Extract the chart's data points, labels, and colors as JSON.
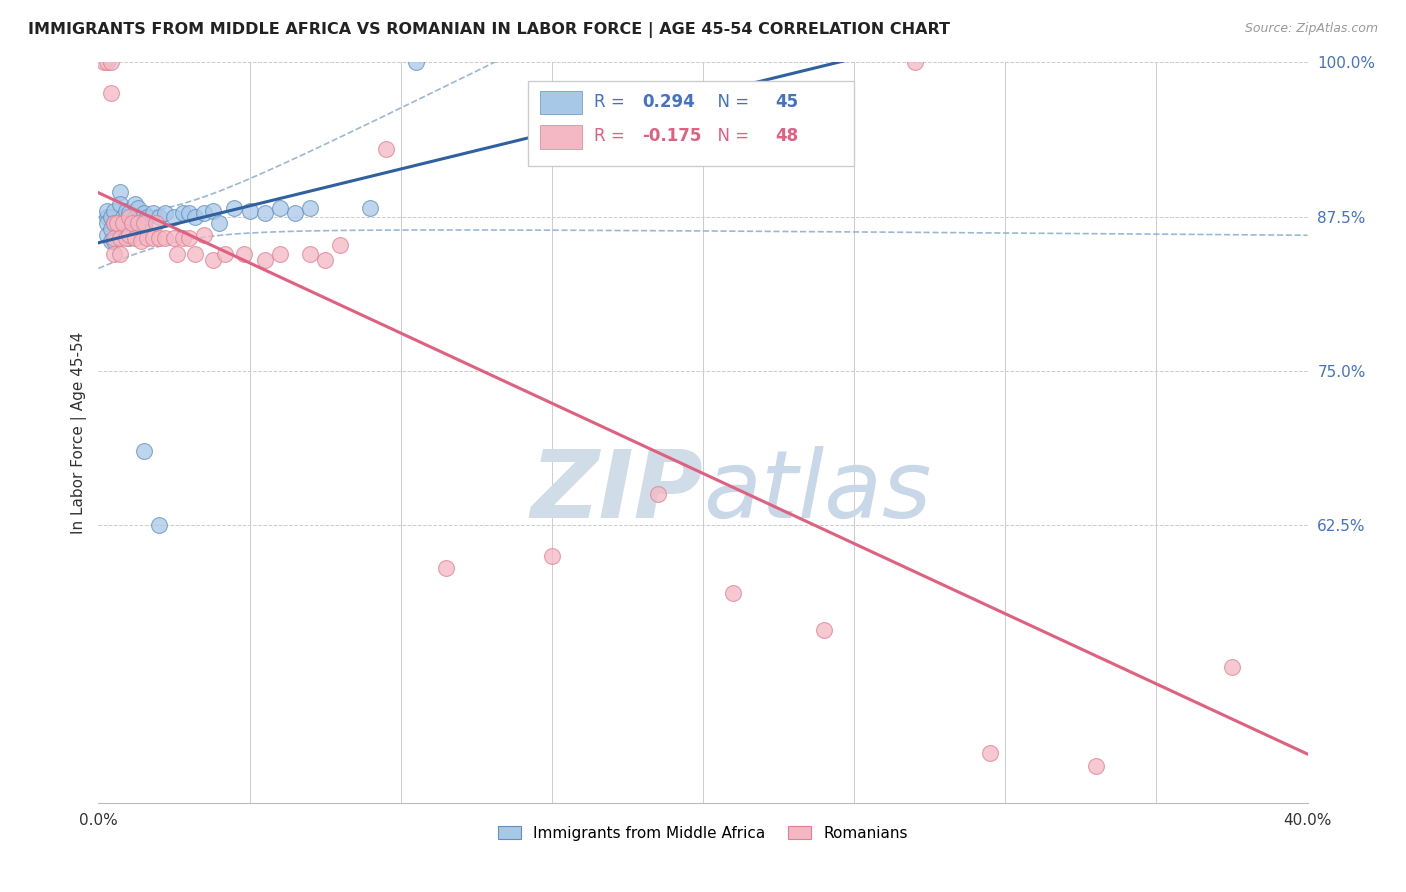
{
  "title": "IMMIGRANTS FROM MIDDLE AFRICA VS ROMANIAN IN LABOR FORCE | AGE 45-54 CORRELATION CHART",
  "source": "Source: ZipAtlas.com",
  "ylabel_label": "In Labor Force | Age 45-54",
  "xlim": [
    0.0,
    0.4
  ],
  "ylim": [
    0.4,
    1.0
  ],
  "ytick_vals": [
    0.625,
    0.75,
    0.875,
    1.0
  ],
  "ytick_labels": [
    "62.5%",
    "75.0%",
    "87.5%",
    "100.0%"
  ],
  "xtick_vals": [
    0.0,
    0.05,
    0.1,
    0.15,
    0.2,
    0.25,
    0.3,
    0.35,
    0.4
  ],
  "xtick_labels": [
    "0.0%",
    "",
    "",
    "",
    "",
    "",
    "",
    "",
    "40.0%"
  ],
  "legend_blue_label": "Immigrants from Middle Africa",
  "legend_pink_label": "Romanians",
  "R_blue": 0.294,
  "N_blue": 45,
  "R_pink": -0.175,
  "N_pink": 48,
  "blue_color": "#a8c8e8",
  "pink_color": "#f4b8c4",
  "blue_edge_color": "#6090c0",
  "pink_edge_color": "#e08090",
  "blue_line_color": "#3060a0",
  "pink_line_color": "#e06080",
  "dash_color": "#90b0d0",
  "watermark_color": "#d0dce8",
  "blue_scatter_x": [
    0.003,
    0.003,
    0.003,
    0.003,
    0.004,
    0.004,
    0.004,
    0.005,
    0.005,
    0.005,
    0.007,
    0.007,
    0.008,
    0.008,
    0.009,
    0.009,
    0.01,
    0.01,
    0.01,
    0.012,
    0.012,
    0.013,
    0.015,
    0.015,
    0.016,
    0.018,
    0.02,
    0.022,
    0.025,
    0.028,
    0.03,
    0.032,
    0.035,
    0.038,
    0.04,
    0.045,
    0.05,
    0.055,
    0.06,
    0.065,
    0.07,
    0.09,
    0.105,
    0.02,
    0.015
  ],
  "blue_scatter_y": [
    0.875,
    0.88,
    0.87,
    0.86,
    0.875,
    0.865,
    0.855,
    0.88,
    0.87,
    0.855,
    0.895,
    0.885,
    0.875,
    0.865,
    0.88,
    0.868,
    0.878,
    0.868,
    0.858,
    0.885,
    0.875,
    0.882,
    0.878,
    0.868,
    0.875,
    0.878,
    0.875,
    0.878,
    0.875,
    0.878,
    0.878,
    0.875,
    0.878,
    0.88,
    0.87,
    0.882,
    0.88,
    0.878,
    0.882,
    0.878,
    0.882,
    0.882,
    1.0,
    0.625,
    0.685
  ],
  "pink_scatter_x": [
    0.002,
    0.003,
    0.004,
    0.004,
    0.005,
    0.005,
    0.005,
    0.006,
    0.007,
    0.007,
    0.008,
    0.009,
    0.01,
    0.01,
    0.011,
    0.012,
    0.013,
    0.014,
    0.015,
    0.016,
    0.018,
    0.019,
    0.02,
    0.022,
    0.025,
    0.026,
    0.028,
    0.03,
    0.032,
    0.035,
    0.038,
    0.042,
    0.048,
    0.055,
    0.06,
    0.07,
    0.075,
    0.08,
    0.095,
    0.115,
    0.15,
    0.185,
    0.21,
    0.24,
    0.27,
    0.295,
    0.33,
    0.375
  ],
  "pink_scatter_y": [
    1.0,
    1.0,
    1.0,
    0.975,
    0.87,
    0.858,
    0.845,
    0.87,
    0.858,
    0.845,
    0.87,
    0.858,
    0.875,
    0.86,
    0.87,
    0.858,
    0.87,
    0.855,
    0.87,
    0.858,
    0.858,
    0.87,
    0.858,
    0.858,
    0.858,
    0.845,
    0.858,
    0.858,
    0.845,
    0.86,
    0.84,
    0.845,
    0.845,
    0.84,
    0.845,
    0.845,
    0.84,
    0.852,
    0.93,
    0.59,
    0.6,
    0.65,
    0.57,
    0.54,
    1.0,
    0.44,
    0.43,
    0.51
  ]
}
